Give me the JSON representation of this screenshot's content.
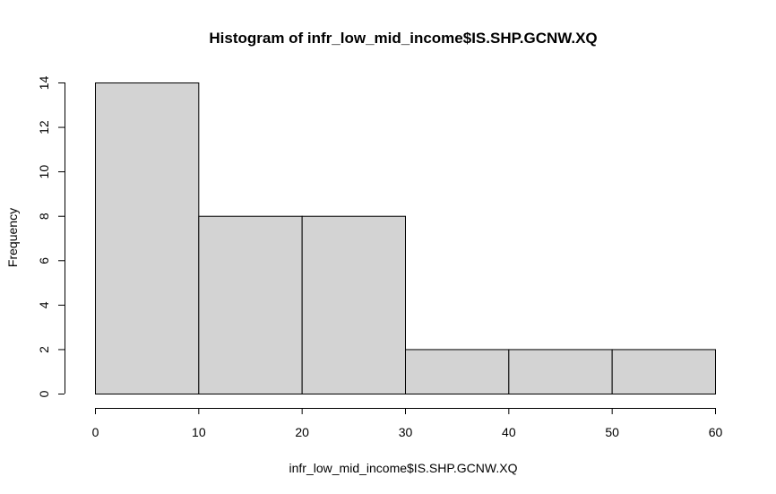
{
  "chart_data": {
    "type": "bar",
    "title": "Histogram of infr_low_mid_income$IS.SHP.GCNW.XQ",
    "xlabel": "infr_low_mid_income$IS.SHP.GCNW.XQ",
    "ylabel": "Frequency",
    "bins": [
      {
        "x0": 0,
        "x1": 10,
        "value": 14
      },
      {
        "x0": 10,
        "x1": 20,
        "value": 8
      },
      {
        "x0": 20,
        "x1": 30,
        "value": 8
      },
      {
        "x0": 30,
        "x1": 40,
        "value": 2
      },
      {
        "x0": 40,
        "x1": 50,
        "value": 2
      },
      {
        "x0": 50,
        "x1": 60,
        "value": 2
      }
    ],
    "xlim": [
      0,
      60
    ],
    "ylim": [
      0,
      14
    ],
    "x_ticks": [
      "0",
      "10",
      "20",
      "30",
      "40",
      "50",
      "60"
    ],
    "y_ticks": [
      "0",
      "2",
      "4",
      "6",
      "8",
      "10",
      "12",
      "14"
    ],
    "grid": false,
    "bar_color": "#d3d3d3",
    "edge_color": "#000000"
  }
}
